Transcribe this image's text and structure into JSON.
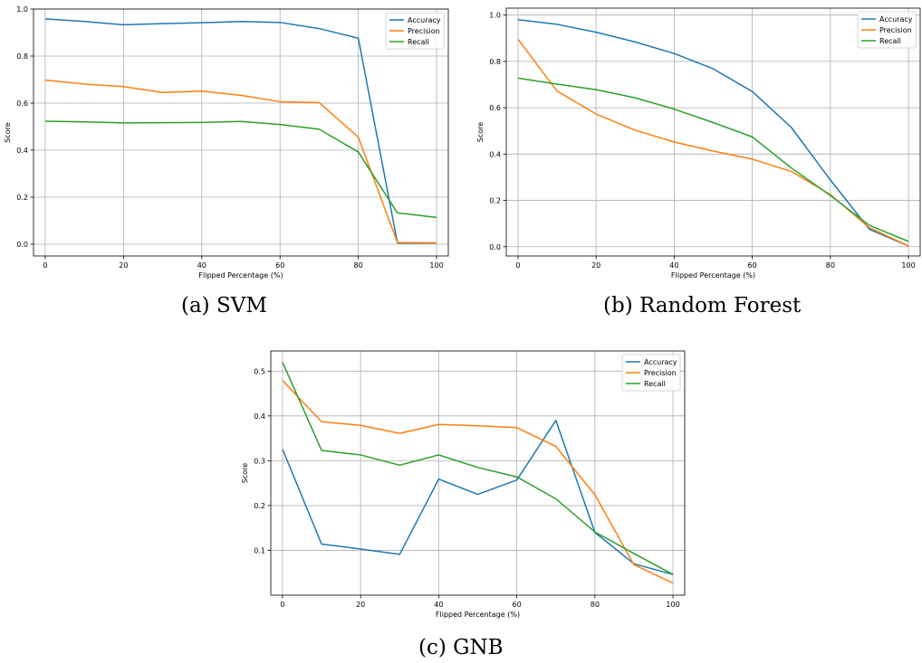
{
  "chart_data": [
    {
      "type": "line",
      "caption": "(a) SVM",
      "xlabel": "Flipped Percentage (%)",
      "ylabel": "Score",
      "x": [
        0,
        10,
        20,
        30,
        40,
        50,
        60,
        70,
        80,
        90,
        100
      ],
      "xlim": [
        -3,
        103
      ],
      "ylim": [
        -0.05,
        1.0
      ],
      "xticks": [
        0,
        20,
        40,
        60,
        80,
        100
      ],
      "yticks": [
        0.0,
        0.2,
        0.4,
        0.6,
        0.8,
        1.0
      ],
      "ytick_labels": [
        "0.0",
        "0.2",
        "0.4",
        "0.6",
        "0.8",
        "1.0"
      ],
      "grid": true,
      "legend_position": "top-right",
      "series": [
        {
          "name": "Accuracy",
          "color": "#1f77b4",
          "values": [
            0.958,
            0.947,
            0.933,
            0.938,
            0.942,
            0.947,
            0.943,
            0.917,
            0.876,
            0.005,
            0.005
          ]
        },
        {
          "name": "Precision",
          "color": "#ff7f0e",
          "values": [
            0.698,
            0.681,
            0.67,
            0.645,
            0.651,
            0.633,
            0.606,
            0.602,
            0.455,
            0.007,
            0.006
          ]
        },
        {
          "name": "Recall",
          "color": "#2ca02c",
          "values": [
            0.523,
            0.52,
            0.516,
            0.517,
            0.518,
            0.522,
            0.509,
            0.489,
            0.392,
            0.133,
            0.114
          ]
        }
      ]
    },
    {
      "type": "line",
      "caption": "(b) Random Forest",
      "xlabel": "Flipped Percentage (%)",
      "ylabel": "Score",
      "x": [
        0,
        10,
        20,
        30,
        40,
        50,
        60,
        70,
        80,
        90,
        100
      ],
      "xlim": [
        -3,
        103
      ],
      "ylim": [
        -0.04,
        1.03
      ],
      "xticks": [
        0,
        20,
        40,
        60,
        80,
        100
      ],
      "yticks": [
        0.0,
        0.2,
        0.4,
        0.6,
        0.8,
        1.0
      ],
      "ytick_labels": [
        "0.0",
        "0.2",
        "0.4",
        "0.6",
        "0.8",
        "1.0"
      ],
      "grid": true,
      "legend_position": "top-right",
      "series": [
        {
          "name": "Accuracy",
          "color": "#1f77b4",
          "values": [
            0.98,
            0.96,
            0.926,
            0.884,
            0.834,
            0.768,
            0.67,
            0.515,
            0.288,
            0.075,
            0.003
          ]
        },
        {
          "name": "Precision",
          "color": "#ff7f0e",
          "values": [
            0.896,
            0.672,
            0.573,
            0.503,
            0.452,
            0.413,
            0.378,
            0.325,
            0.225,
            0.082,
            0.003
          ]
        },
        {
          "name": "Recall",
          "color": "#2ca02c",
          "values": [
            0.728,
            0.702,
            0.678,
            0.643,
            0.594,
            0.536,
            0.474,
            0.34,
            0.221,
            0.092,
            0.023
          ]
        }
      ]
    },
    {
      "type": "line",
      "caption": "(c) GNB",
      "xlabel": "Flipped Percentage (%)",
      "ylabel": "Score",
      "x": [
        0,
        10,
        20,
        30,
        40,
        50,
        60,
        70,
        80,
        90,
        100
      ],
      "xlim": [
        -3,
        103
      ],
      "ylim": [
        0.0,
        0.545
      ],
      "xticks": [
        0,
        20,
        40,
        60,
        80,
        100
      ],
      "yticks": [
        0.1,
        0.2,
        0.3,
        0.4,
        0.5
      ],
      "ytick_labels": [
        "0.1",
        "0.2",
        "0.3",
        "0.4",
        "0.5"
      ],
      "grid": true,
      "legend_position": "top-right",
      "series": [
        {
          "name": "Accuracy",
          "color": "#1f77b4",
          "values": [
            0.326,
            0.114,
            0.103,
            0.091,
            0.259,
            0.225,
            0.257,
            0.39,
            0.14,
            0.07,
            0.046
          ]
        },
        {
          "name": "Precision",
          "color": "#ff7f0e",
          "values": [
            0.479,
            0.387,
            0.379,
            0.361,
            0.381,
            0.378,
            0.374,
            0.332,
            0.224,
            0.068,
            0.027
          ]
        },
        {
          "name": "Recall",
          "color": "#2ca02c",
          "values": [
            0.52,
            0.323,
            0.313,
            0.29,
            0.313,
            0.285,
            0.264,
            0.215,
            0.141,
            0.093,
            0.046
          ]
        }
      ]
    }
  ]
}
